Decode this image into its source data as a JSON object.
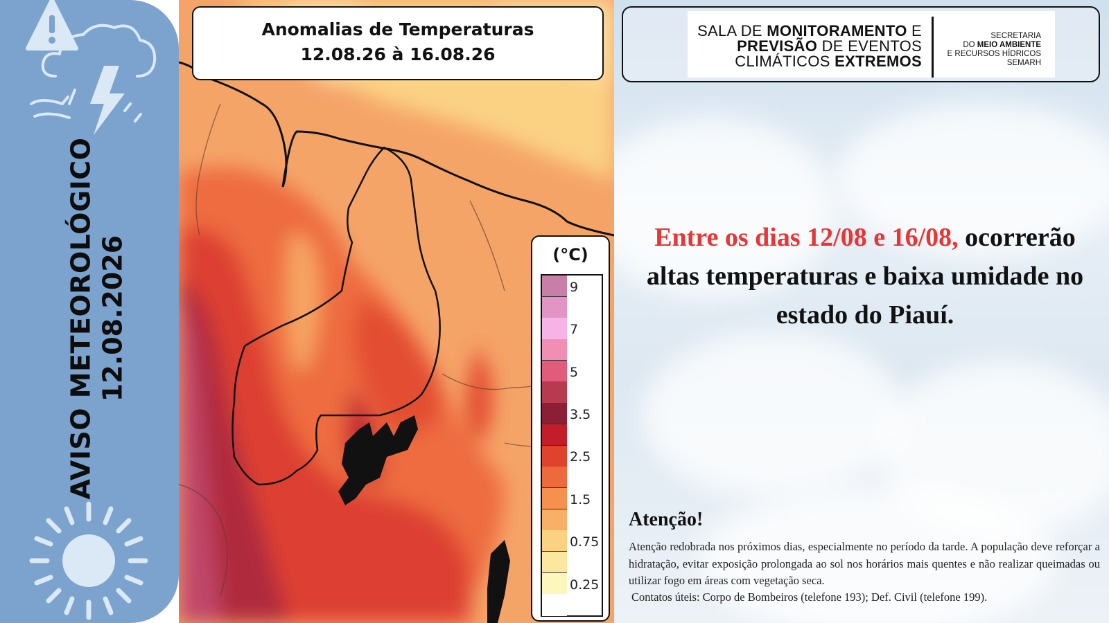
{
  "sidebar": {
    "title": "AVISO METEOROLÓGICO",
    "date": "12.08.2026",
    "background": "#7ba3cd",
    "icons": [
      "warning-storm-cloud-icon",
      "sun-icon"
    ]
  },
  "map": {
    "title_line1": "Anomalias de Temperaturas",
    "title_line2": "12.08.26 à 16.08.26",
    "legend": {
      "unit": "(°C)",
      "tick_labels": [
        "9",
        "7",
        "5",
        "3.5",
        "2.5",
        "1.5",
        "0.75",
        "0.25"
      ],
      "colors": [
        "#c77fa8",
        "#e294c4",
        "#f7b3e6",
        "#f08fb3",
        "#e05c7a",
        "#b83a4f",
        "#8a1f35",
        "#c41d2a",
        "#e0432d",
        "#ec6a3b",
        "#f5904f",
        "#f8b066",
        "#fbd184",
        "#fbe79f",
        "#fdf6bd",
        "#ffffff"
      ]
    }
  },
  "header": {
    "logo_line1_a": "SALA DE ",
    "logo_line1_b": "MONITORAMENTO",
    "logo_line1_c": " E",
    "logo_line2_a": "PREVISÃO",
    "logo_line2_b": " DE EVENTOS",
    "logo_line3_a": "CLIMÁTICOS ",
    "logo_line3_b": "EXTREMOS",
    "sec_line1": "SECRETARIA",
    "sec_line2_a": "DO ",
    "sec_line2_b": "MEIO AMBIENTE",
    "sec_line3": "E RECURSOS HÍDRICOS",
    "sec_line4": "SEMARH"
  },
  "headline": {
    "red_part": "Entre os dias 12/08 e 16/08,",
    "rest": " ocorrerão altas temperaturas e baixa umidade no estado do Piauí.",
    "red_color": "#e63636"
  },
  "attention": {
    "title": "Atenção!",
    "body": "Atenção redobrada nos próximos dias, especialmente no período da tarde. A população deve reforçar a hidratação, evitar exposição prolongada ao sol nos horários mais quentes e não realizar queimadas ou utilizar fogo em áreas com vegetação seca.",
    "contacts": "Contatos úteis: Corpo de Bombeiros (telefone 193); Def. Civil (telefone 199)."
  }
}
